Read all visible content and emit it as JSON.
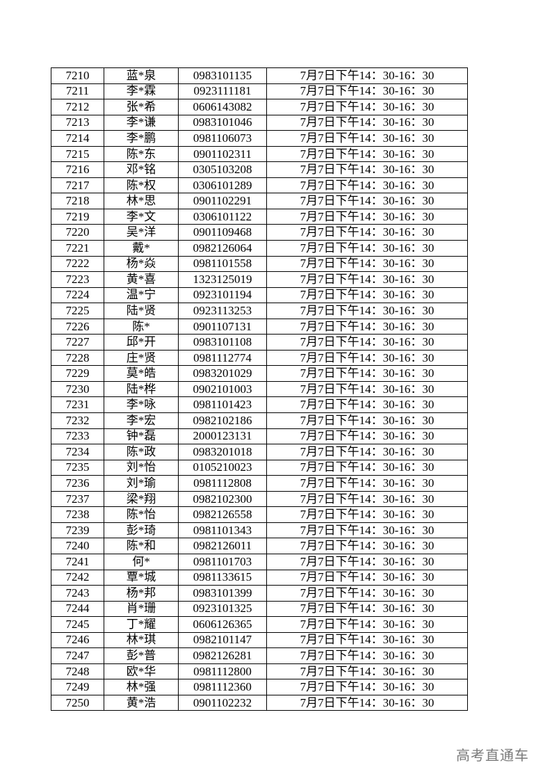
{
  "table": {
    "rows": [
      [
        "7210",
        "蓝*泉",
        "0983101135",
        "7月7日下午14：30-16：30"
      ],
      [
        "7211",
        "李*霖",
        "0923111181",
        "7月7日下午14：30-16：30"
      ],
      [
        "7212",
        "张*希",
        "0606143082",
        "7月7日下午14：30-16：30"
      ],
      [
        "7213",
        "李*谦",
        "0983101046",
        "7月7日下午14：30-16：30"
      ],
      [
        "7214",
        "李*鹏",
        "0981106073",
        "7月7日下午14：30-16：30"
      ],
      [
        "7215",
        "陈*东",
        "0901102311",
        "7月7日下午14：30-16：30"
      ],
      [
        "7216",
        "邓*铭",
        "0305103208",
        "7月7日下午14：30-16：30"
      ],
      [
        "7217",
        "陈*权",
        "0306101289",
        "7月7日下午14：30-16：30"
      ],
      [
        "7218",
        "林*思",
        "0901102291",
        "7月7日下午14：30-16：30"
      ],
      [
        "7219",
        "李*文",
        "0306101122",
        "7月7日下午14：30-16：30"
      ],
      [
        "7220",
        "吴*洋",
        "0901109468",
        "7月7日下午14：30-16：30"
      ],
      [
        "7221",
        "戴*",
        "0982126064",
        "7月7日下午14：30-16：30"
      ],
      [
        "7222",
        "杨*焱",
        "0981101558",
        "7月7日下午14：30-16：30"
      ],
      [
        "7223",
        "黄*喜",
        "1323125019",
        "7月7日下午14：30-16：30"
      ],
      [
        "7224",
        "温*宁",
        "0923101194",
        "7月7日下午14：30-16：30"
      ],
      [
        "7225",
        "陆*贤",
        "0923113253",
        "7月7日下午14：30-16：30"
      ],
      [
        "7226",
        "陈*",
        "0901107131",
        "7月7日下午14：30-16：30"
      ],
      [
        "7227",
        "邱*开",
        "0983101108",
        "7月7日下午14：30-16：30"
      ],
      [
        "7228",
        "庄*贤",
        "0981112774",
        "7月7日下午14：30-16：30"
      ],
      [
        "7229",
        "莫*皓",
        "0983201029",
        "7月7日下午14：30-16：30"
      ],
      [
        "7230",
        "陆*桦",
        "0902101003",
        "7月7日下午14：30-16：30"
      ],
      [
        "7231",
        "李*咏",
        "0981101423",
        "7月7日下午14：30-16：30"
      ],
      [
        "7232",
        "李*宏",
        "0982102186",
        "7月7日下午14：30-16：30"
      ],
      [
        "7233",
        "钟*磊",
        "2000123131",
        "7月7日下午14：30-16：30"
      ],
      [
        "7234",
        "陈*政",
        "0983201018",
        "7月7日下午14：30-16：30"
      ],
      [
        "7235",
        "刘*怡",
        "0105210023",
        "7月7日下午14：30-16：30"
      ],
      [
        "7236",
        "刘*瑜",
        "0981112808",
        "7月7日下午14：30-16：30"
      ],
      [
        "7237",
        "梁*翔",
        "0982102300",
        "7月7日下午14：30-16：30"
      ],
      [
        "7238",
        "陈*怡",
        "0982126558",
        "7月7日下午14：30-16：30"
      ],
      [
        "7239",
        "彭*琦",
        "0981101343",
        "7月7日下午14：30-16：30"
      ],
      [
        "7240",
        "陈*和",
        "0982126011",
        "7月7日下午14：30-16：30"
      ],
      [
        "7241",
        "何*",
        "0981101703",
        "7月7日下午14：30-16：30"
      ],
      [
        "7242",
        "覃*城",
        "0981133615",
        "7月7日下午14：30-16：30"
      ],
      [
        "7243",
        "杨*邦",
        "0983101399",
        "7月7日下午14：30-16：30"
      ],
      [
        "7244",
        "肖*珊",
        "0923101325",
        "7月7日下午14：30-16：30"
      ],
      [
        "7245",
        "丁*耀",
        "0606126365",
        "7月7日下午14：30-16：30"
      ],
      [
        "7246",
        "林*琪",
        "0982101147",
        "7月7日下午14：30-16：30"
      ],
      [
        "7247",
        "彭*普",
        "0982126281",
        "7月7日下午14：30-16：30"
      ],
      [
        "7248",
        "欧*华",
        "0981112800",
        "7月7日下午14：30-16：30"
      ],
      [
        "7249",
        "林*强",
        "0981112360",
        "7月7日下午14：30-16：30"
      ],
      [
        "7250",
        "黄*浩",
        "0901102232",
        "7月7日下午14：30-16：30"
      ]
    ]
  },
  "watermark": "高考直通车"
}
